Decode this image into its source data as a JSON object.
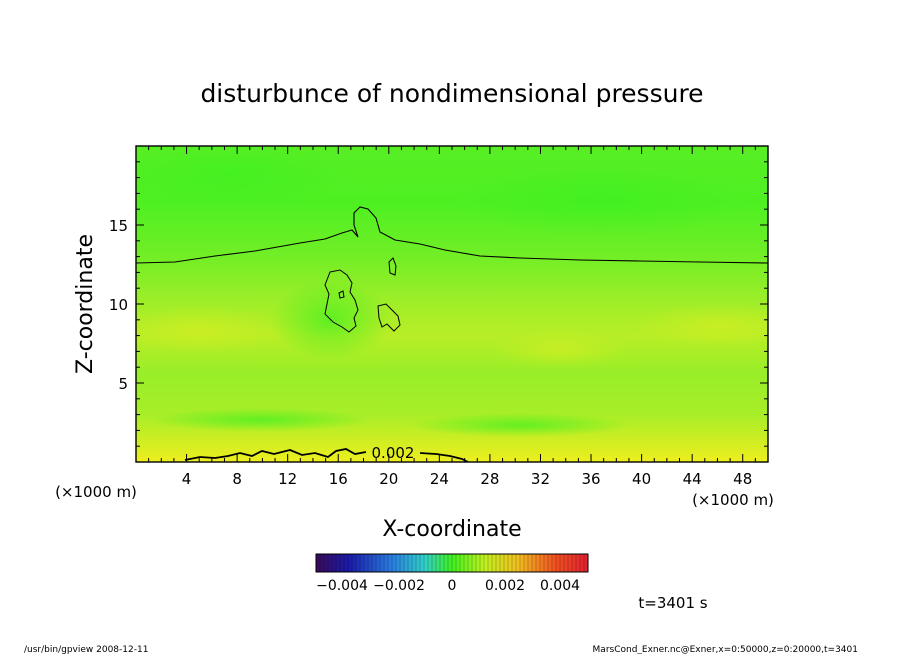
{
  "chart_data": {
    "type": "heatmap",
    "title": "disturbunce of nondimensional pressure",
    "xlabel": "X-coordinate",
    "ylabel": "Z-coordinate",
    "x_unit": "(×1000 m)",
    "y_unit": "(×1000 m)",
    "xlim": [
      0,
      50
    ],
    "ylim": [
      0,
      20
    ],
    "x_ticks": [
      4,
      8,
      12,
      16,
      20,
      24,
      28,
      32,
      36,
      40,
      44,
      48
    ],
    "y_ticks": [
      5,
      10,
      15
    ],
    "contour_label": "0.002",
    "colorbar": {
      "range": [
        -0.005,
        0.005
      ],
      "tick_labels": [
        "−0.004",
        "−0.002",
        "0",
        "0.002",
        "0.004"
      ]
    },
    "time_label": "t=3401 s"
  },
  "footer": {
    "left": "/usr/bin/gpview   2008-12-11",
    "right": "MarsCond_Exner.nc@Exner,x=0:50000,z=0:20000,t=3401"
  },
  "colors": {
    "green": "#3cf020",
    "yellow_green": "#9ef028",
    "yellow": "#e6f020"
  }
}
